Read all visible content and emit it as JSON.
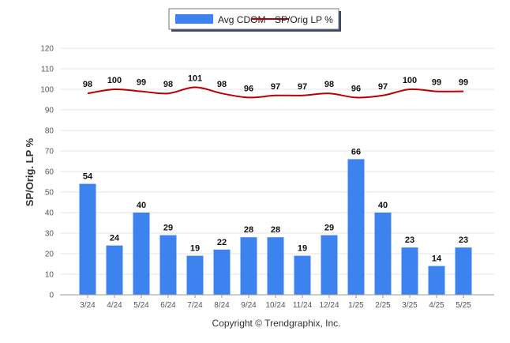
{
  "chart_data": {
    "type": "bar",
    "categories": [
      "3/24",
      "4/24",
      "5/24",
      "6/24",
      "7/24",
      "8/24",
      "9/24",
      "10/24",
      "11/24",
      "12/24",
      "1/25",
      "2/25",
      "3/25",
      "4/25",
      "5/25"
    ],
    "series": [
      {
        "name": "Avg CDOM",
        "type": "bar",
        "color": "#3d83ef",
        "values": [
          54,
          24,
          40,
          29,
          19,
          22,
          28,
          28,
          19,
          29,
          66,
          40,
          23,
          14,
          23
        ]
      },
      {
        "name": "SP/Orig LP %",
        "type": "line",
        "color": "#bb0000",
        "values": [
          98,
          100,
          99,
          98,
          101,
          98,
          96,
          97,
          97,
          98,
          96,
          97,
          100,
          99,
          99
        ]
      }
    ],
    "ylabel": "SP/Orig. LP %",
    "ylim": [
      0,
      120
    ],
    "yticks": [
      0,
      10,
      20,
      30,
      40,
      50,
      60,
      70,
      80,
      90,
      100,
      110,
      120
    ],
    "grid": true,
    "legend_position": "top-center"
  },
  "footer": {
    "copyright": "Copyright © Trendgraphix, Inc."
  }
}
